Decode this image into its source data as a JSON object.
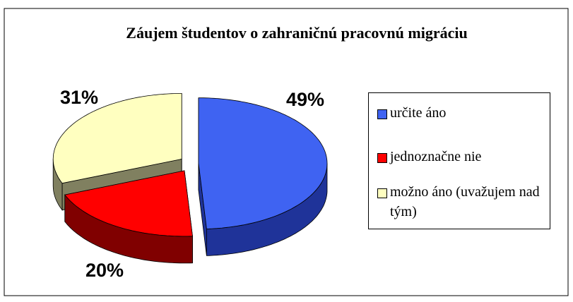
{
  "chart_data": {
    "type": "pie3d",
    "title": "Záujem študentov o zahraničnú pracovnú migráciu",
    "categories": [
      "určite áno",
      "jednoznačne nie",
      "možno áno (uvažujem nad tým)"
    ],
    "values": [
      49,
      20,
      31
    ],
    "value_labels": [
      "49%",
      "20%",
      "31%"
    ],
    "colors": [
      "#3f63f2",
      "#ff0000",
      "#ffffc0"
    ],
    "side_colors": [
      "#1f3399",
      "#800000",
      "#808060"
    ],
    "legend": "right"
  }
}
